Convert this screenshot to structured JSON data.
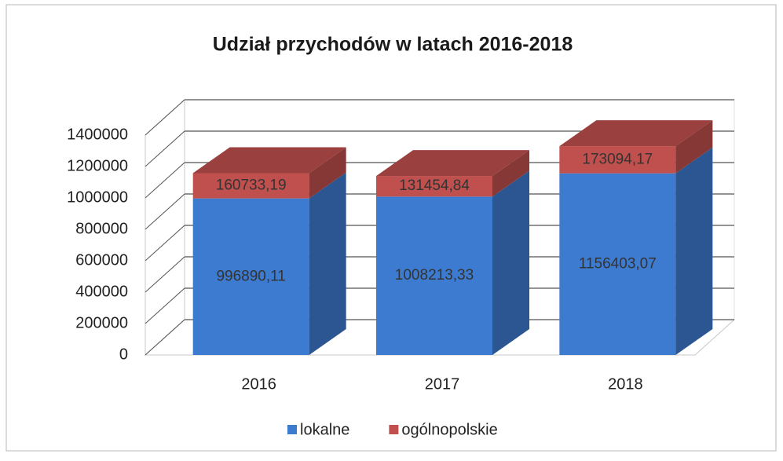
{
  "chart_data": {
    "type": "bar3d_stacked",
    "title": "Udział przychodów w latach 2016-2018",
    "categories": [
      "2016",
      "2017",
      "2018"
    ],
    "series": [
      {
        "name": "lokalne",
        "color": "#3d7bd0",
        "values": [
          996890.11,
          1008213.33,
          1156403.07
        ],
        "value_labels": [
          "996890,11",
          "1008213,33",
          "1156403,07"
        ]
      },
      {
        "name": "ogólnopolskie",
        "color": "#c0504d",
        "values": [
          160733.19,
          131454.84,
          173094.17
        ],
        "value_labels": [
          "160733,19",
          "131454,84",
          "173094,17"
        ]
      }
    ],
    "ylim": [
      0,
      1400000
    ],
    "yticks": [
      0,
      200000,
      400000,
      600000,
      800000,
      1000000,
      1200000,
      1400000
    ],
    "grid": true,
    "legend": "bottom"
  }
}
